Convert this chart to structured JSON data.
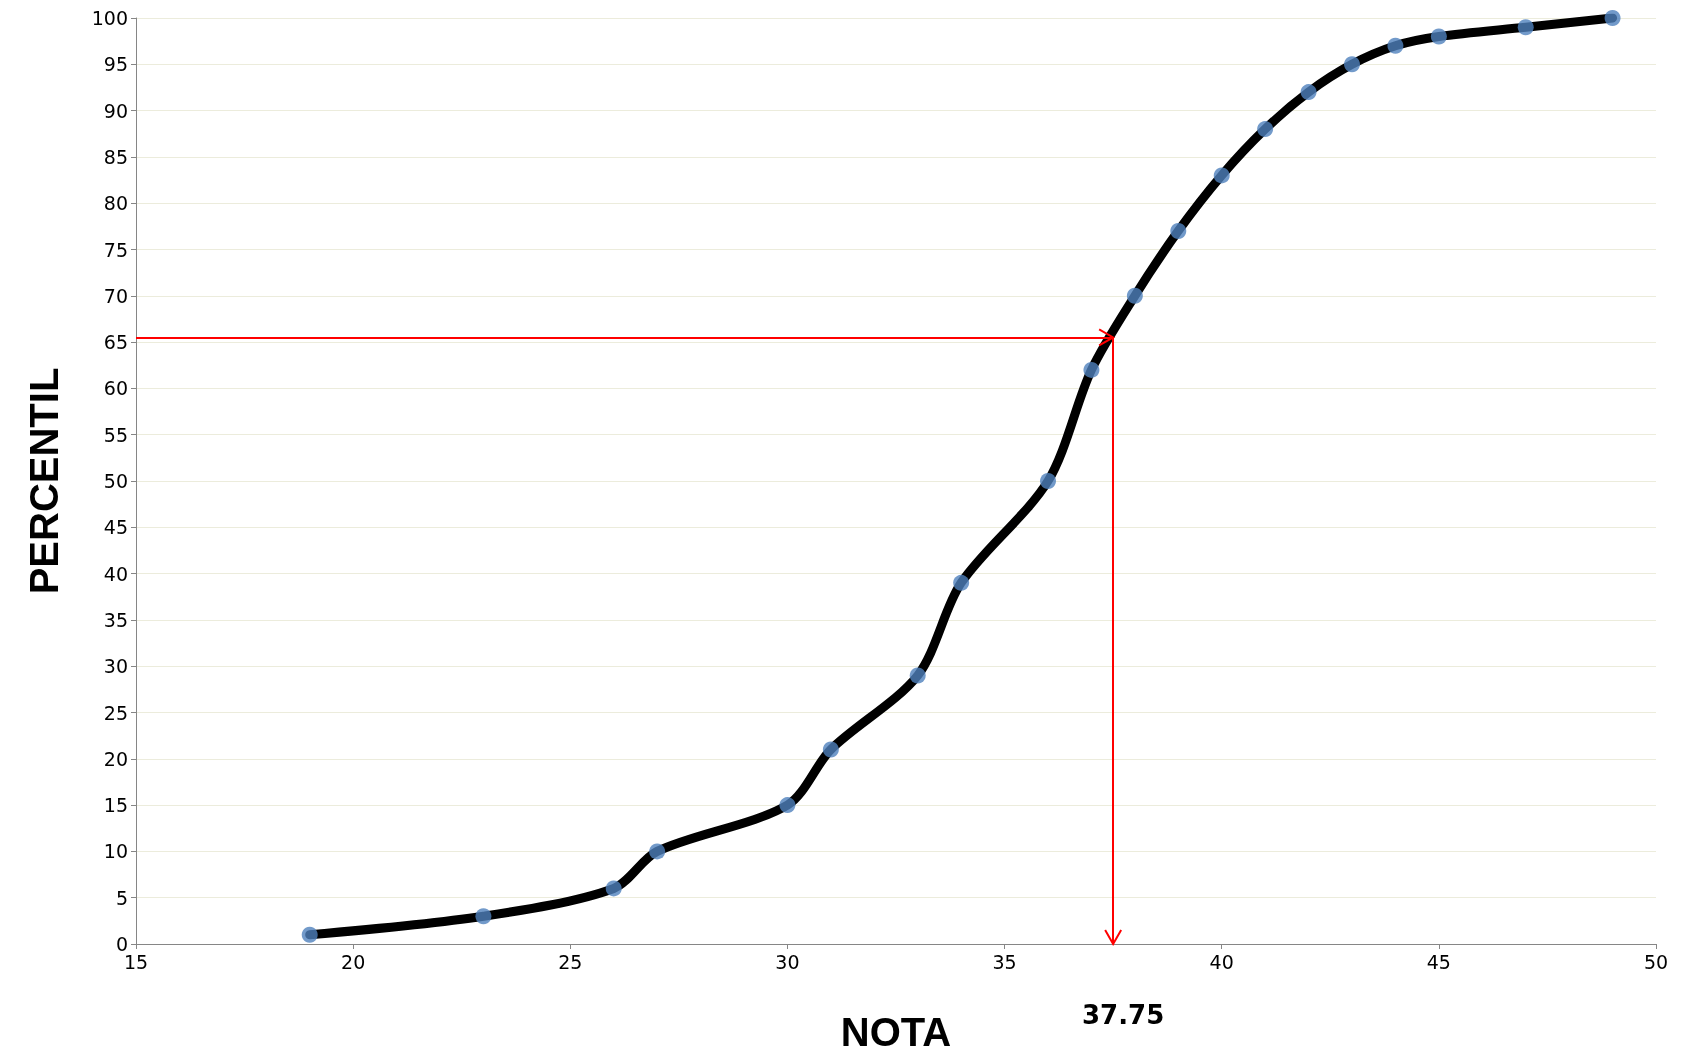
{
  "chart_data": {
    "type": "line",
    "xlabel": "NOTA",
    "ylabel": "PERCENTIL",
    "x": [
      19,
      23,
      26,
      27,
      30,
      31,
      33,
      34,
      36,
      37,
      38,
      39,
      40,
      41,
      42,
      43,
      44,
      45,
      47,
      49
    ],
    "series": [
      {
        "color": "#000000",
        "marker": "none",
        "values": [
          1,
          3,
          6,
          10,
          15,
          21,
          29,
          39,
          50,
          62,
          70,
          77,
          83,
          88,
          92,
          95,
          97,
          98,
          99,
          100
        ]
      },
      {
        "type": "scatter",
        "color": "#4f81bd",
        "marker": "circle",
        "values": [
          1,
          3,
          6,
          10,
          15,
          21,
          29,
          39,
          50,
          62,
          70,
          77,
          83,
          88,
          92,
          95,
          97,
          98,
          99,
          100
        ]
      }
    ],
    "xlim": [
      15,
      50
    ],
    "xticks": [
      15,
      20,
      25,
      30,
      35,
      40,
      45,
      50
    ],
    "ylim": [
      0,
      100
    ],
    "yticks": [
      0,
      5,
      10,
      15,
      20,
      25,
      30,
      35,
      40,
      45,
      50,
      55,
      60,
      65,
      70,
      75,
      80,
      85,
      90,
      95,
      100
    ],
    "grid": "y",
    "line_style": "solid",
    "ref_lines": [
      {
        "axis": "y",
        "value": 65.5,
        "color": "#ff0000"
      },
      {
        "axis": "x",
        "value": 37.5,
        "color": "#ff0000"
      }
    ],
    "annotations": [
      "37.75"
    ]
  }
}
